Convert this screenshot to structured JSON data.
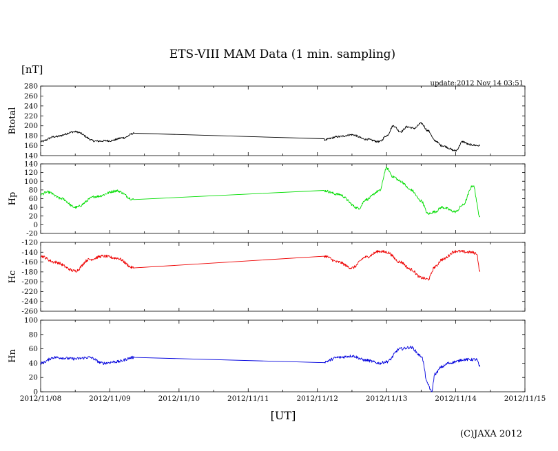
{
  "title": "ETS-VIII MAM Data (1 min. sampling)",
  "unit": "[nT]",
  "update": "update:2012 Nov 14 03:51",
  "xlabel": "[UT]",
  "copyright": "(C)JAXA 2012",
  "x_ticks": [
    "2012/11/08",
    "2012/11/09",
    "2012/11/10",
    "2012/11/11",
    "2012/11/12",
    "2012/11/13",
    "2012/11/14",
    "2012/11/15"
  ],
  "chart_data": [
    {
      "type": "line",
      "name": "Btotal",
      "ylabel": "Btotal",
      "color": "#000000",
      "ylim": [
        140,
        280
      ],
      "yticks": [
        140,
        160,
        180,
        200,
        220,
        240,
        260,
        280
      ],
      "x_unit": "days since 2012/11/08 00:00 UT",
      "xlim": [
        0,
        7
      ],
      "noise": 2,
      "x": [
        0,
        0.2,
        0.5,
        0.8,
        1.0,
        1.2,
        1.35,
        4.1,
        4.3,
        4.5,
        4.7,
        4.9,
        5.0,
        5.1,
        5.2,
        5.3,
        5.4,
        5.5,
        5.6,
        5.7,
        5.8,
        6.0,
        6.1,
        6.2,
        6.35
      ],
      "values": [
        168,
        178,
        188,
        169,
        170,
        176,
        185,
        172,
        178,
        182,
        173,
        168,
        180,
        200,
        188,
        198,
        195,
        205,
        190,
        170,
        160,
        150,
        168,
        162,
        160
      ]
    },
    {
      "type": "line",
      "name": "Hp",
      "ylabel": "Hp",
      "color": "#00dd00",
      "ylim": [
        -20,
        140
      ],
      "yticks": [
        -20,
        0,
        20,
        40,
        60,
        80,
        100,
        120,
        140
      ],
      "x_unit": "days since 2012/11/08 00:00 UT",
      "xlim": [
        0,
        7
      ],
      "noise": 3,
      "x": [
        0,
        0.1,
        0.3,
        0.5,
        0.8,
        1.1,
        1.35,
        4.1,
        4.3,
        4.6,
        4.7,
        4.9,
        5.0,
        5.1,
        5.2,
        5.35,
        5.5,
        5.6,
        5.7,
        5.8,
        6.0,
        6.1,
        6.25,
        6.35
      ],
      "values": [
        70,
        75,
        60,
        40,
        65,
        78,
        58,
        78,
        70,
        38,
        58,
        78,
        130,
        110,
        100,
        80,
        55,
        25,
        30,
        40,
        30,
        45,
        90,
        20
      ]
    },
    {
      "type": "line",
      "name": "Hc",
      "ylabel": "Hc",
      "color": "#ee0000",
      "ylim": [
        -260,
        -120
      ],
      "yticks": [
        -260,
        -240,
        -220,
        -200,
        -180,
        -160,
        -140,
        -120
      ],
      "x_unit": "days since 2012/11/08 00:00 UT",
      "xlim": [
        0,
        7
      ],
      "noise": 3,
      "x": [
        0,
        0.2,
        0.5,
        0.7,
        0.9,
        1.1,
        1.35,
        4.1,
        4.3,
        4.5,
        4.7,
        4.9,
        5.0,
        5.2,
        5.35,
        5.5,
        5.6,
        5.7,
        5.8,
        6.0,
        6.2,
        6.3,
        6.35
      ],
      "values": [
        -148,
        -160,
        -178,
        -155,
        -148,
        -152,
        -172,
        -148,
        -160,
        -172,
        -150,
        -138,
        -140,
        -160,
        -175,
        -192,
        -195,
        -170,
        -155,
        -138,
        -140,
        -142,
        -180
      ]
    },
    {
      "type": "line",
      "name": "Hn",
      "ylabel": "Hn",
      "color": "#0000dd",
      "ylim": [
        0,
        100
      ],
      "yticks": [
        0,
        20,
        40,
        60,
        80,
        100
      ],
      "x_unit": "days since 2012/11/08 00:00 UT",
      "xlim": [
        0,
        7
      ],
      "noise": 2,
      "x": [
        0,
        0.2,
        0.5,
        0.7,
        0.9,
        1.1,
        1.35,
        4.1,
        4.3,
        4.5,
        4.7,
        4.9,
        5.0,
        5.2,
        5.35,
        5.5,
        5.6,
        5.65,
        5.7,
        5.8,
        5.9,
        6.0,
        6.1,
        6.3,
        6.35
      ],
      "values": [
        40,
        48,
        46,
        48,
        40,
        42,
        48,
        42,
        48,
        50,
        44,
        40,
        42,
        60,
        62,
        50,
        10,
        0,
        25,
        35,
        40,
        42,
        45,
        45,
        35
      ]
    }
  ]
}
